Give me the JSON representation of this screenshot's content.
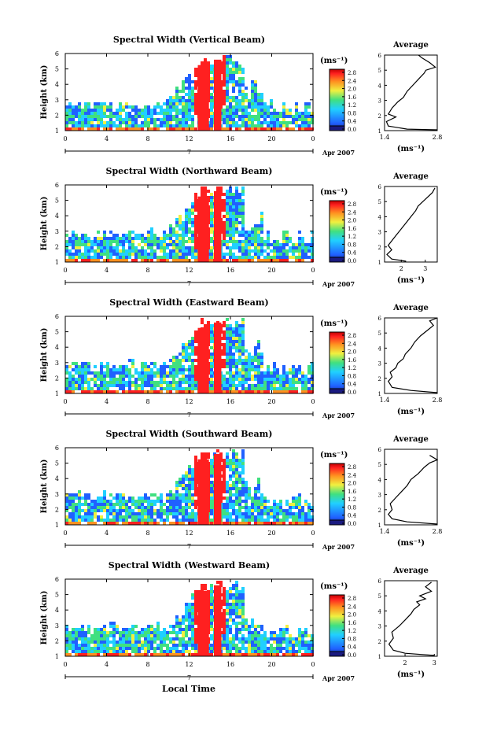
{
  "figure": {
    "time_axis_label": "Local Time",
    "date_label": "Apr 2007",
    "day_label": "7",
    "colorbar_unit": "(ms⁻¹)",
    "average_title": "Average",
    "height_axis_label": "Height (km)",
    "colors": {
      "dark_blue": "#1a1a80",
      "blue": "#2060ff",
      "cyan": "#20d0ff",
      "green": "#40e080",
      "yellow": "#f0f040",
      "orange": "#ff9020",
      "red": "#ff2020",
      "deep_red": "#c00000"
    }
  },
  "chart_data": [
    {
      "type": "heatmap",
      "title": "Spectral Width (Vertical Beam)",
      "ylabel": "Height (km)",
      "xlabel": "",
      "xticks": [
        "0",
        "4",
        "8",
        "12",
        "16",
        "20",
        "0"
      ],
      "yticks": [
        "1",
        "2",
        "3",
        "4",
        "5",
        "6"
      ],
      "xlim": [
        0,
        24
      ],
      "ylim": [
        1,
        6
      ],
      "colorbar": {
        "unit": "(ms⁻¹)",
        "ticks": [
          "2.8",
          "2.4",
          "2.0",
          "1.6",
          "1.2",
          "0.8",
          "0.4",
          "0.0"
        ],
        "range": [
          0.0,
          2.8
        ]
      },
      "average_profile": {
        "title": "Average",
        "xlabel": "(ms⁻¹)",
        "xticks": [
          "1.4",
          "2.8"
        ],
        "xlim": [
          1.4,
          2.8
        ],
        "yticks": [
          "1",
          "2",
          "3",
          "4",
          "5",
          "6"
        ],
        "ylim": [
          1,
          6
        ],
        "points": [
          [
            2.8,
            1.05
          ],
          [
            2.0,
            1.1
          ],
          [
            1.5,
            1.3
          ],
          [
            1.45,
            1.6
          ],
          [
            1.7,
            1.9
          ],
          [
            1.5,
            2.1
          ],
          [
            1.6,
            2.5
          ],
          [
            1.75,
            2.9
          ],
          [
            1.9,
            3.2
          ],
          [
            2.0,
            3.6
          ],
          [
            2.15,
            4.0
          ],
          [
            2.3,
            4.4
          ],
          [
            2.45,
            4.8
          ],
          [
            2.5,
            5.0
          ],
          [
            2.75,
            5.2
          ],
          [
            2.6,
            5.5
          ],
          [
            2.4,
            5.8
          ],
          [
            2.3,
            6.0
          ]
        ]
      }
    },
    {
      "type": "heatmap",
      "title": "Spectral Width (Northward Beam)",
      "ylabel": "Height (km)",
      "xlabel": "",
      "xticks": [
        "0",
        "4",
        "8",
        "12",
        "16",
        "20",
        "0"
      ],
      "yticks": [
        "1",
        "2",
        "3",
        "4",
        "5",
        "6"
      ],
      "xlim": [
        0,
        24
      ],
      "ylim": [
        1,
        6
      ],
      "colorbar": {
        "unit": "(ms⁻¹)",
        "ticks": [
          "2.8",
          "2.4",
          "2.0",
          "1.6",
          "1.2",
          "0.8",
          "0.4",
          "0.0"
        ],
        "range": [
          0.0,
          2.8
        ]
      },
      "average_profile": {
        "title": "Average",
        "xlabel": "(ms⁻¹)",
        "xticks": [
          "2",
          "3"
        ],
        "xlim": [
          1.3,
          3.5
        ],
        "yticks": [
          "1",
          "2",
          "3",
          "4",
          "5",
          "6"
        ],
        "ylim": [
          1,
          6
        ],
        "points": [
          [
            2.2,
            1.05
          ],
          [
            1.6,
            1.2
          ],
          [
            1.4,
            1.5
          ],
          [
            1.6,
            1.8
          ],
          [
            1.45,
            2.1
          ],
          [
            1.6,
            2.4
          ],
          [
            1.8,
            2.8
          ],
          [
            2.0,
            3.2
          ],
          [
            2.2,
            3.6
          ],
          [
            2.4,
            4.0
          ],
          [
            2.6,
            4.4
          ],
          [
            2.7,
            4.7
          ],
          [
            2.9,
            5.0
          ],
          [
            3.1,
            5.3
          ],
          [
            3.3,
            5.6
          ],
          [
            3.4,
            5.9
          ]
        ]
      }
    },
    {
      "type": "heatmap",
      "title": "Spectral Width (Eastward Beam)",
      "ylabel": "Height (km)",
      "xlabel": "",
      "xticks": [
        "0",
        "4",
        "8",
        "12",
        "16",
        "20",
        "0"
      ],
      "yticks": [
        "1",
        "2",
        "3",
        "4",
        "5",
        "6"
      ],
      "xlim": [
        0,
        24
      ],
      "ylim": [
        1,
        6
      ],
      "colorbar": {
        "unit": "(ms⁻¹)",
        "ticks": [
          "2.8",
          "2.4",
          "2.0",
          "1.6",
          "1.2",
          "0.8",
          "0.4",
          "0.0"
        ],
        "range": [
          0.0,
          2.8
        ]
      },
      "average_profile": {
        "title": "Average",
        "xlabel": "(ms⁻¹)",
        "xticks": [
          "1.4",
          "2.8"
        ],
        "xlim": [
          1.4,
          2.8
        ],
        "yticks": [
          "1",
          "2",
          "3",
          "4",
          "5",
          "6"
        ],
        "ylim": [
          1,
          6
        ],
        "points": [
          [
            2.8,
            1.05
          ],
          [
            2.1,
            1.2
          ],
          [
            1.6,
            1.4
          ],
          [
            1.5,
            1.8
          ],
          [
            1.6,
            2.1
          ],
          [
            1.55,
            2.4
          ],
          [
            1.7,
            2.7
          ],
          [
            1.75,
            3.0
          ],
          [
            1.9,
            3.3
          ],
          [
            1.95,
            3.6
          ],
          [
            2.1,
            4.0
          ],
          [
            2.2,
            4.4
          ],
          [
            2.35,
            4.8
          ],
          [
            2.55,
            5.2
          ],
          [
            2.7,
            5.5
          ],
          [
            2.6,
            5.8
          ],
          [
            2.8,
            6.0
          ]
        ]
      }
    },
    {
      "type": "heatmap",
      "title": "Spectral Width (Southward Beam)",
      "ylabel": "Height (km)",
      "xlabel": "",
      "xticks": [
        "0",
        "4",
        "8",
        "12",
        "16",
        "20",
        "0"
      ],
      "yticks": [
        "1",
        "2",
        "3",
        "4",
        "5",
        "6"
      ],
      "xlim": [
        0,
        24
      ],
      "ylim": [
        1,
        6
      ],
      "colorbar": {
        "unit": "(ms⁻¹)",
        "ticks": [
          "2.8",
          "2.4",
          "2.0",
          "1.6",
          "1.2",
          "0.8",
          "0.4",
          "0.0"
        ],
        "range": [
          0.0,
          2.8
        ]
      },
      "average_profile": {
        "title": "Average",
        "xlabel": "(ms⁻¹)",
        "xticks": [
          "1.4",
          "2.8"
        ],
        "xlim": [
          1.4,
          2.8
        ],
        "yticks": [
          "1",
          "2",
          "3",
          "4",
          "5",
          "6"
        ],
        "ylim": [
          1,
          6
        ],
        "points": [
          [
            2.8,
            1.05
          ],
          [
            2.0,
            1.2
          ],
          [
            1.6,
            1.4
          ],
          [
            1.5,
            1.7
          ],
          [
            1.6,
            2.0
          ],
          [
            1.55,
            2.4
          ],
          [
            1.7,
            2.8
          ],
          [
            1.85,
            3.2
          ],
          [
            2.0,
            3.6
          ],
          [
            2.1,
            4.0
          ],
          [
            2.3,
            4.4
          ],
          [
            2.45,
            4.8
          ],
          [
            2.6,
            5.1
          ],
          [
            2.8,
            5.3
          ],
          [
            2.6,
            5.6
          ]
        ]
      }
    },
    {
      "type": "heatmap",
      "title": "Spectral Width (Westward Beam)",
      "ylabel": "Height (km)",
      "xlabel": "Local Time",
      "xticks": [
        "0",
        "4",
        "8",
        "12",
        "16",
        "20",
        "0"
      ],
      "yticks": [
        "1",
        "2",
        "3",
        "4",
        "5",
        "6"
      ],
      "xlim": [
        0,
        24
      ],
      "ylim": [
        1,
        6
      ],
      "colorbar": {
        "unit": "(ms⁻¹)",
        "ticks": [
          "2.8",
          "2.4",
          "2.0",
          "1.6",
          "1.2",
          "0.8",
          "0.4",
          "0.0"
        ],
        "range": [
          0.0,
          2.8
        ]
      },
      "average_profile": {
        "title": "Average",
        "xlabel": "(ms⁻¹)",
        "xticks": [
          "2",
          "3"
        ],
        "xlim": [
          1.3,
          3.1
        ],
        "yticks": [
          "1",
          "2",
          "3",
          "4",
          "5",
          "6"
        ],
        "ylim": [
          1,
          6
        ],
        "points": [
          [
            3.0,
            1.05
          ],
          [
            2.0,
            1.2
          ],
          [
            1.6,
            1.4
          ],
          [
            1.45,
            1.8
          ],
          [
            1.6,
            2.2
          ],
          [
            1.55,
            2.6
          ],
          [
            1.8,
            3.0
          ],
          [
            2.0,
            3.4
          ],
          [
            2.2,
            3.8
          ],
          [
            2.3,
            4.1
          ],
          [
            2.5,
            4.4
          ],
          [
            2.4,
            4.6
          ],
          [
            2.7,
            4.8
          ],
          [
            2.5,
            5.0
          ],
          [
            2.9,
            5.3
          ],
          [
            2.7,
            5.6
          ],
          [
            2.9,
            5.9
          ]
        ]
      }
    }
  ]
}
